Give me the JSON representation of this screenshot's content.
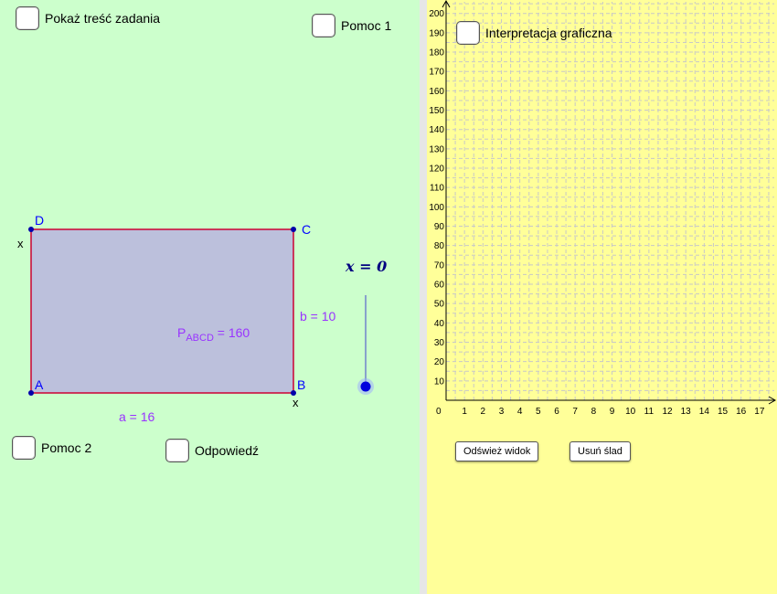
{
  "left_panel": {
    "checkboxes": {
      "show_task": "Pokaż treść zadania",
      "help1": "Pomoc 1",
      "help2": "Pomoc 2",
      "answer": "Odpowiedź"
    },
    "rectangle": {
      "vertices": {
        "A": "A",
        "B": "B",
        "C": "C",
        "D": "D"
      },
      "side_a": "a = 16",
      "side_b": "b = 10",
      "area_prefix": "P",
      "area_sub": "ABCD",
      "area_suffix": " = 160",
      "x_label_left": "x",
      "x_label_right": "x",
      "fill_color": "#bcc0dc",
      "edge_color": "#cc0033",
      "point_color": "#0000aa"
    },
    "slider": {
      "label": "x = 0",
      "value": 0
    }
  },
  "right_panel": {
    "checkbox_graph": "Interpretacja graficzna",
    "buttons": {
      "refresh": "Odśwież widok",
      "clear_trace": "Usuń ślad"
    },
    "chart_data": {
      "type": "scatter",
      "title": "",
      "xlabel": "",
      "ylabel": "",
      "origin_label": "0",
      "x_ticks": [
        "1",
        "2",
        "3",
        "4",
        "5",
        "6",
        "7",
        "8",
        "9",
        "10",
        "11",
        "12",
        "13",
        "14",
        "15",
        "16",
        "17"
      ],
      "y_ticks": [
        "10",
        "20",
        "30",
        "40",
        "50",
        "60",
        "70",
        "80",
        "90",
        "100",
        "110",
        "120",
        "130",
        "140",
        "150",
        "160",
        "170",
        "180",
        "190",
        "200"
      ],
      "xlim": [
        0,
        17.8
      ],
      "ylim": [
        0,
        206
      ],
      "grid": true,
      "series": []
    }
  }
}
